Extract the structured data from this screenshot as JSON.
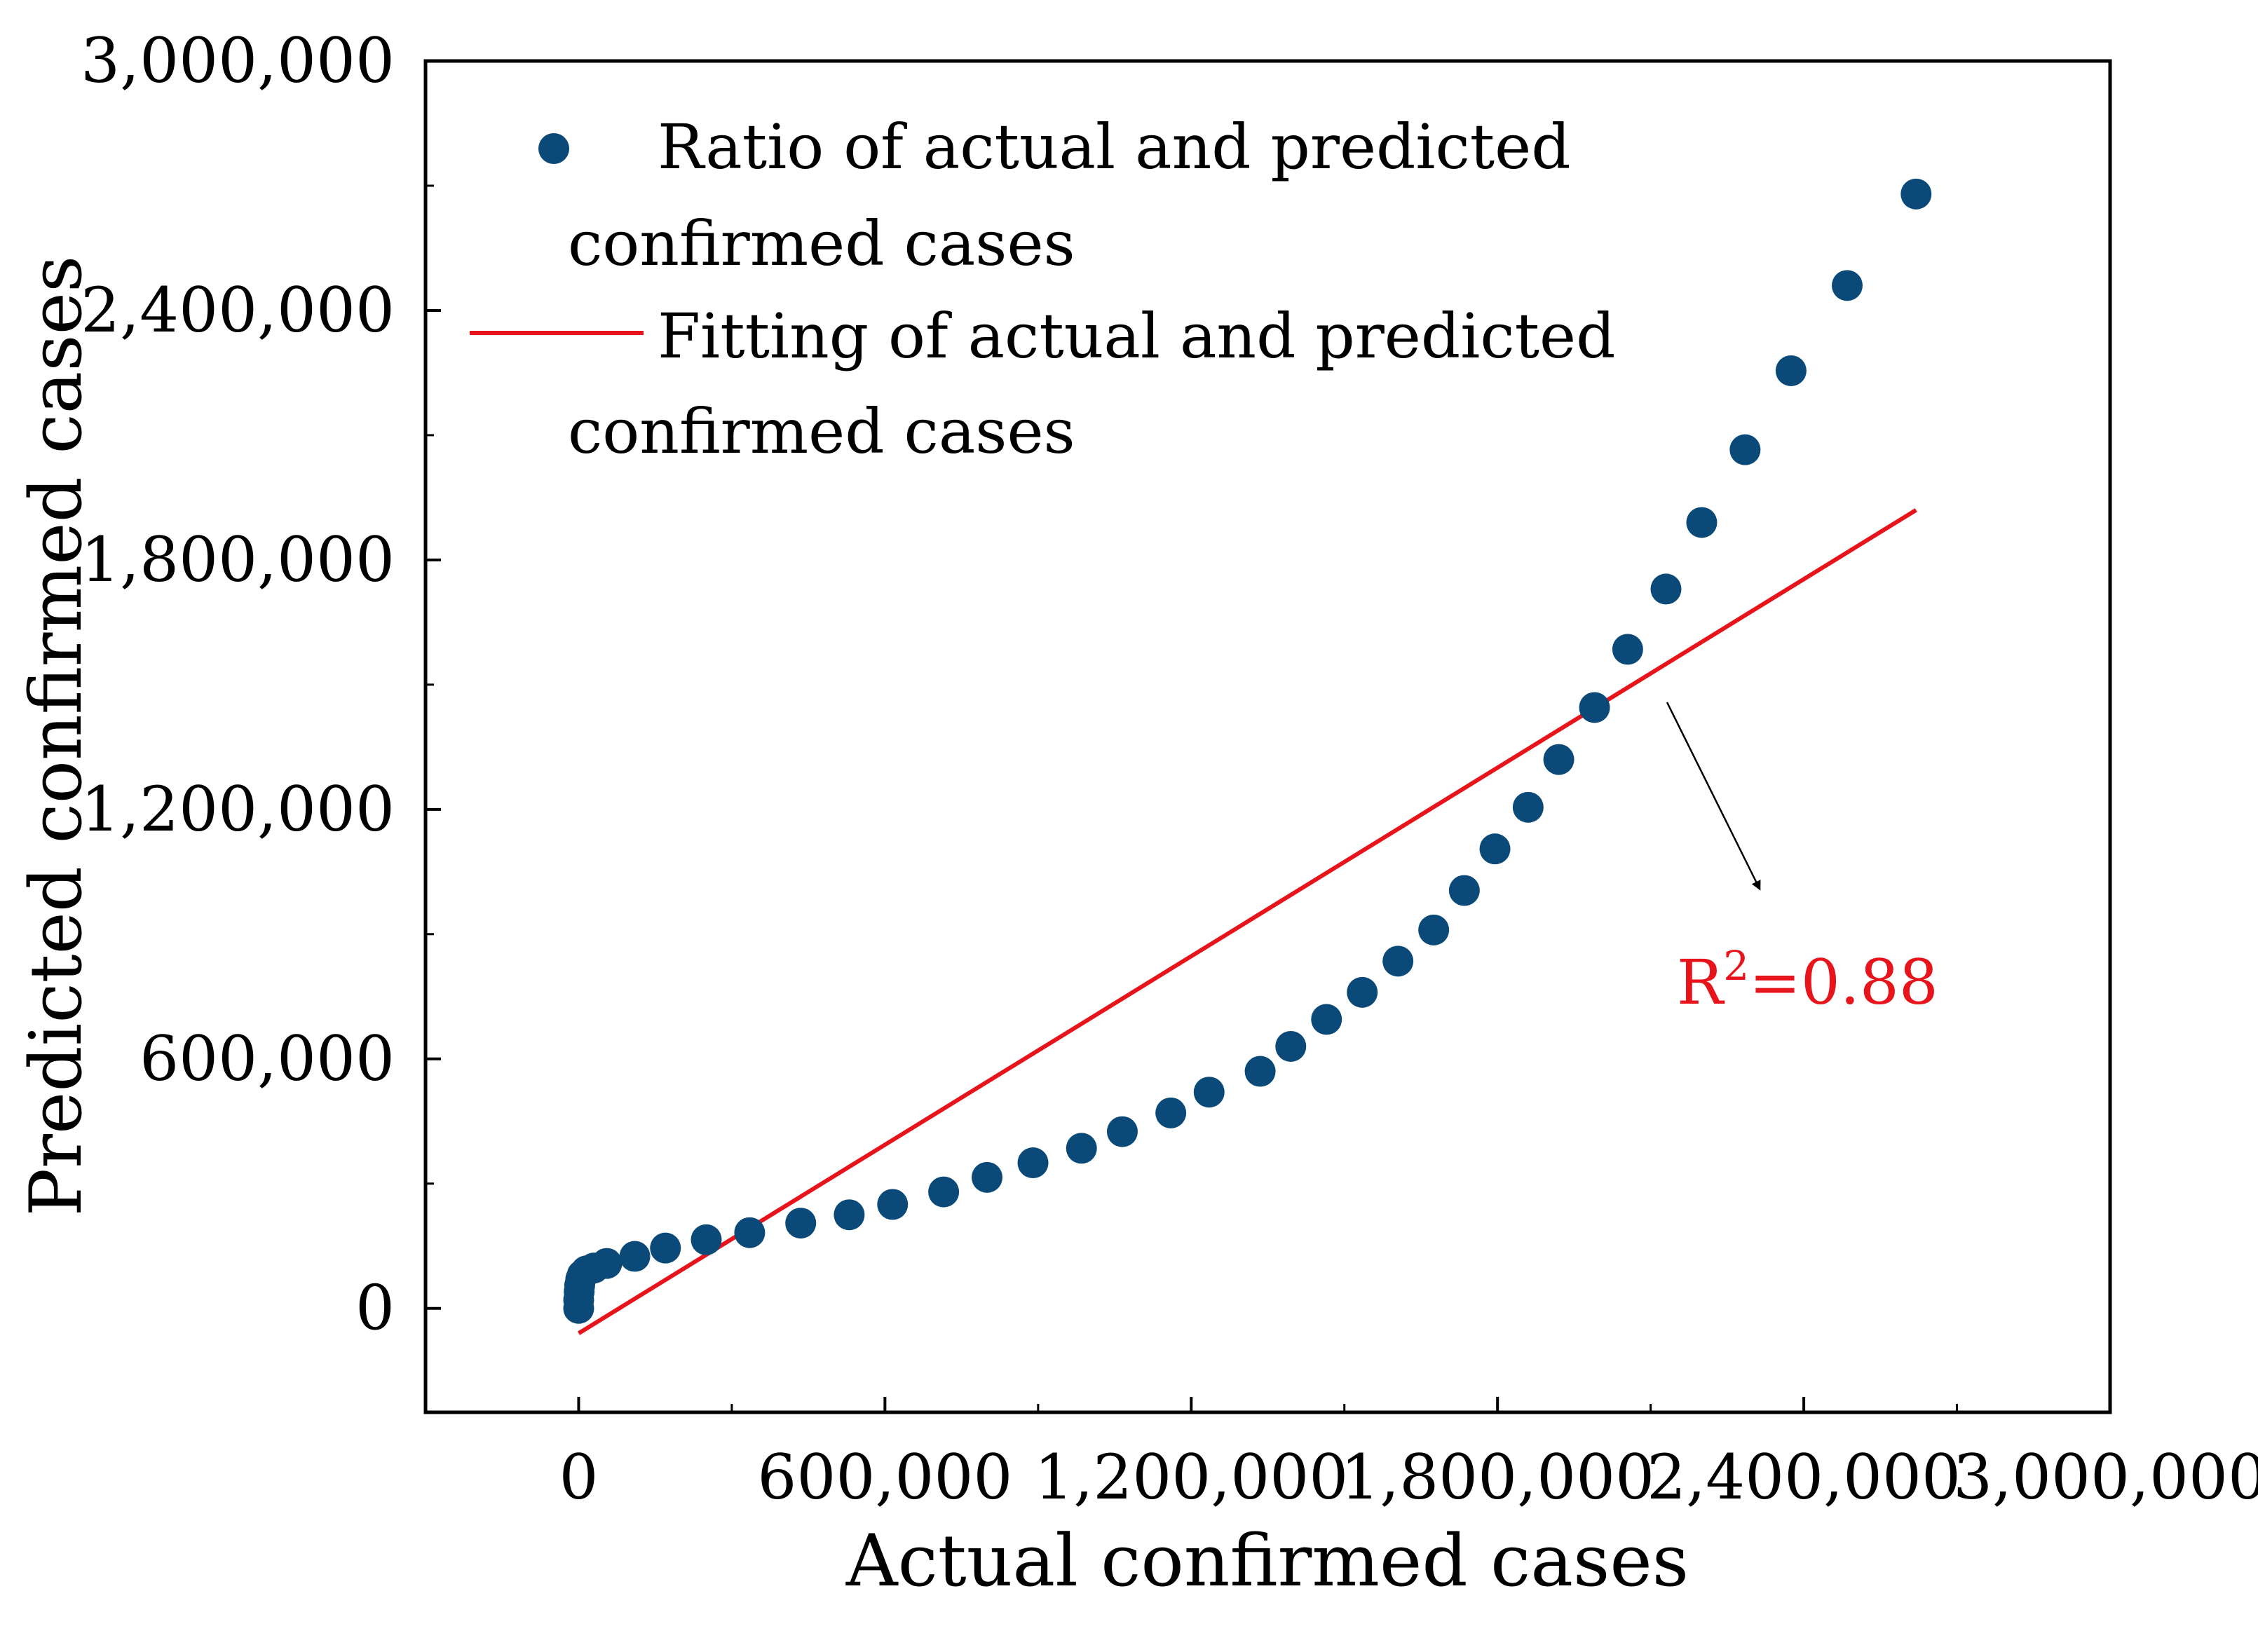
{
  "chart_data": {
    "type": "scatter",
    "title": "",
    "xlabel": "Actual confirmed cases",
    "ylabel": "Predicted confirmed cases",
    "xlim": [
      -300000,
      3000000
    ],
    "ylim": [
      -250000,
      3000000
    ],
    "x_ticks": [
      0,
      600000,
      1200000,
      1800000,
      2400000,
      3000000
    ],
    "x_tick_labels": [
      "0",
      "600,000",
      "1,200,000",
      "1,800,000",
      "2,400,000",
      "3,000,000"
    ],
    "y_ticks": [
      0,
      600000,
      1200000,
      1800000,
      2400000,
      3000000
    ],
    "y_tick_labels": [
      "0",
      "600,000",
      "1,200,000",
      "1,800,000",
      "2,400,000",
      "3,000,000"
    ],
    "grid": false,
    "legend_position": "top-left",
    "series": [
      {
        "name": "Ratio of actual and predicted confirmed cases",
        "legend_line1": "Ratio of actual and predicted",
        "legend_line2": "confirmed cases",
        "kind": "scatter",
        "color": "#0b4a78",
        "points": [
          [
            0,
            0
          ],
          [
            0,
            20000
          ],
          [
            1000,
            40000
          ],
          [
            2000,
            55000
          ],
          [
            4000,
            70000
          ],
          [
            7000,
            80000
          ],
          [
            15000,
            90000
          ],
          [
            30000,
            97000
          ],
          [
            55000,
            108000
          ],
          [
            110000,
            125000
          ],
          [
            170000,
            145000
          ],
          [
            250000,
            165000
          ],
          [
            335000,
            182000
          ],
          [
            435000,
            205000
          ],
          [
            530000,
            225000
          ],
          [
            615000,
            250000
          ],
          [
            715000,
            280000
          ],
          [
            800000,
            315000
          ],
          [
            890000,
            350000
          ],
          [
            985000,
            385000
          ],
          [
            1065000,
            425000
          ],
          [
            1160000,
            470000
          ],
          [
            1235000,
            520000
          ],
          [
            1335000,
            570000
          ],
          [
            1395000,
            630000
          ],
          [
            1465000,
            695000
          ],
          [
            1535000,
            760000
          ],
          [
            1605000,
            835000
          ],
          [
            1675000,
            910000
          ],
          [
            1735000,
            1005000
          ],
          [
            1795000,
            1105000
          ],
          [
            1860000,
            1205000
          ],
          [
            1920000,
            1320000
          ],
          [
            1990000,
            1445000
          ],
          [
            2055000,
            1585000
          ],
          [
            2130000,
            1730000
          ],
          [
            2200000,
            1890000
          ],
          [
            2285000,
            2065000
          ],
          [
            2375000,
            2255000
          ],
          [
            2485000,
            2460000
          ],
          [
            2620000,
            2680000
          ]
        ]
      },
      {
        "name": "Fitting of actual and predicted confirmed cases",
        "legend_line1": "Fitting of actual and predicted",
        "legend_line2": "confirmed cases",
        "kind": "line",
        "color": "#e8141b",
        "points": [
          [
            0,
            -60000
          ],
          [
            2620000,
            1920000
          ]
        ]
      }
    ],
    "annotations": [
      {
        "text": "R2=0.88",
        "base": "R",
        "superscript": "2",
        "rest": "=0.88",
        "color": "#e8141b"
      }
    ]
  }
}
